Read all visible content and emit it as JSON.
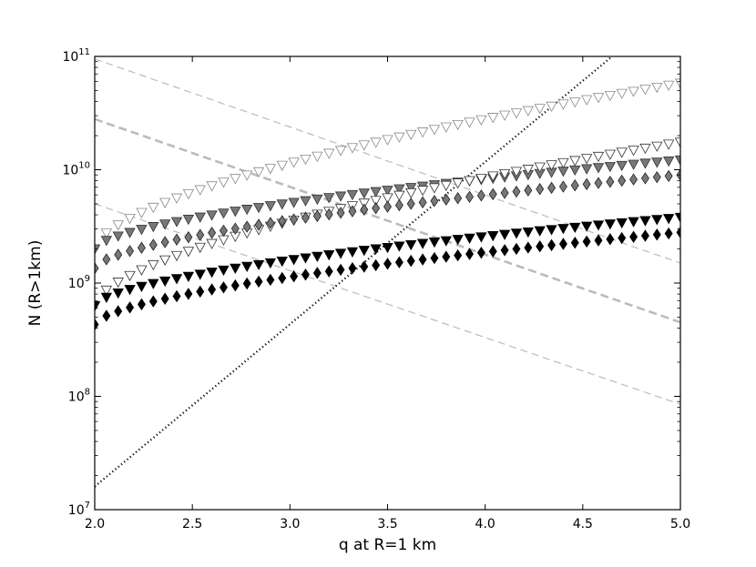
{
  "chart_data": {
    "type": "scatter",
    "title": "",
    "xlabel": "q at R=1 km",
    "ylabel": "N (R>1km)",
    "xlim": [
      2.0,
      5.0
    ],
    "ylim": [
      10000000.0,
      100000000000.0
    ],
    "yscale": "log",
    "grid": false,
    "x_ticks": [
      "2.0",
      "2.5",
      "3.0",
      "3.5",
      "4.0",
      "4.5",
      "5.0"
    ],
    "y_ticks": [
      {
        "base": "10",
        "exp": "7"
      },
      {
        "base": "10",
        "exp": "8"
      },
      {
        "base": "10",
        "exp": "9"
      },
      {
        "base": "10",
        "exp": "10"
      },
      {
        "base": "10",
        "exp": "11"
      }
    ],
    "point_series": [
      {
        "marker": "triangle-down",
        "fill": "#ffffff",
        "stroke": "#888888",
        "start": [
          2.0,
          2000000000.0
        ],
        "end": [
          5.0,
          58000000000.0
        ]
      },
      {
        "marker": "triangle-down",
        "fill": "#777777",
        "stroke": "#333333",
        "start": [
          2.0,
          2000000000.0
        ],
        "end": [
          5.0,
          12200000000.0
        ]
      },
      {
        "marker": "triangle-down",
        "fill": "#ffffff",
        "stroke": "#333333",
        "start": [
          2.0,
          630000000.0
        ],
        "end": [
          5.0,
          17500000000.0
        ]
      },
      {
        "marker": "diamond",
        "fill": "#777777",
        "stroke": "#222222",
        "start": [
          2.0,
          1350000000.0
        ],
        "end": [
          5.0,
          9000000000.0
        ]
      },
      {
        "marker": "triangle-down",
        "fill": "#000000",
        "stroke": "#000000",
        "start": [
          2.0,
          630000000.0
        ],
        "end": [
          5.0,
          3800000000.0
        ]
      },
      {
        "marker": "diamond",
        "fill": "#000000",
        "stroke": "#000000",
        "start": [
          2.0,
          430000000.0
        ],
        "end": [
          5.0,
          2800000000.0
        ]
      }
    ],
    "line_series": [
      {
        "style": "dashed",
        "color": "#bbbbbb",
        "x": [
          2.0,
          5.0
        ],
        "y": [
          95000000000.0,
          1500000000.0
        ]
      },
      {
        "style": "dashed-thick",
        "color": "#bbbbbb",
        "x": [
          2.0,
          5.0
        ],
        "y": [
          28000000000.0,
          450000000.0
        ]
      },
      {
        "style": "dashed",
        "color": "#bbbbbb",
        "x": [
          2.0,
          5.0
        ],
        "y": [
          5000000000.0,
          85000000.0
        ]
      },
      {
        "style": "dotted",
        "color": "#000000",
        "x": [
          2.0,
          4.65
        ],
        "y": [
          16000000.0,
          100000000000.0
        ]
      }
    ]
  }
}
